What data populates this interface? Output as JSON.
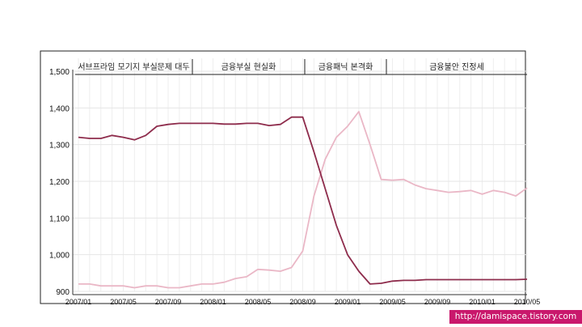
{
  "chart_data": {
    "type": "line",
    "title": "",
    "xlabel": "",
    "ylabel": "",
    "ylim": [
      900,
      1500
    ],
    "y_ticks": [
      "900",
      "1,000",
      "1,100",
      "1,200",
      "1,300",
      "1,400",
      "1,500"
    ],
    "x_tick_labels": [
      "2007/01",
      "2007/05",
      "2007/09",
      "2008/01",
      "2008/05",
      "2008/09",
      "2009/01",
      "2009/05",
      "2009/09",
      "2010/01",
      "2010/05"
    ],
    "phases": [
      "서브프라임 모기지 부실문제 대두",
      "금융부실 현실화",
      "금융패닉 본격화",
      "금융불안 진정세"
    ],
    "x": [
      "2007/01",
      "2007/02",
      "2007/03",
      "2007/04",
      "2007/05",
      "2007/06",
      "2007/07",
      "2007/08",
      "2007/09",
      "2007/10",
      "2007/11",
      "2007/12",
      "2008/01",
      "2008/02",
      "2008/03",
      "2008/04",
      "2008/05",
      "2008/06",
      "2008/07",
      "2008/08",
      "2008/09",
      "2008/10",
      "2008/11",
      "2008/12",
      "2009/01",
      "2009/02",
      "2009/03",
      "2009/04",
      "2009/05",
      "2009/06",
      "2009/07",
      "2009/08",
      "2009/09",
      "2009/10",
      "2009/11",
      "2009/12",
      "2010/01",
      "2010/02",
      "2010/03",
      "2010/04",
      "2010/05"
    ],
    "series": [
      {
        "color": "#8e2c4c",
        "values": [
          1320,
          1317,
          1317,
          1325,
          1320,
          1313,
          1325,
          1350,
          1355,
          1358,
          1358,
          1358,
          1358,
          1356,
          1356,
          1358,
          1358,
          1352,
          1355,
          1375,
          1375,
          1280,
          1180,
          1080,
          1000,
          955,
          920,
          922,
          928,
          930,
          930,
          932,
          932,
          932,
          932,
          932,
          932,
          932,
          932,
          932,
          933
        ]
      },
      {
        "color": "#eab7c6",
        "values": [
          920,
          920,
          915,
          915,
          915,
          910,
          915,
          915,
          910,
          910,
          915,
          920,
          920,
          925,
          935,
          940,
          960,
          958,
          955,
          965,
          1010,
          1160,
          1260,
          1320,
          1350,
          1390,
          1300,
          1205,
          1203,
          1205,
          1190,
          1180,
          1175,
          1170,
          1172,
          1175,
          1165,
          1175,
          1170,
          1160,
          1182
        ]
      }
    ],
    "grid": true,
    "legend": "none"
  },
  "watermark": "http://damispace.tistory.com"
}
